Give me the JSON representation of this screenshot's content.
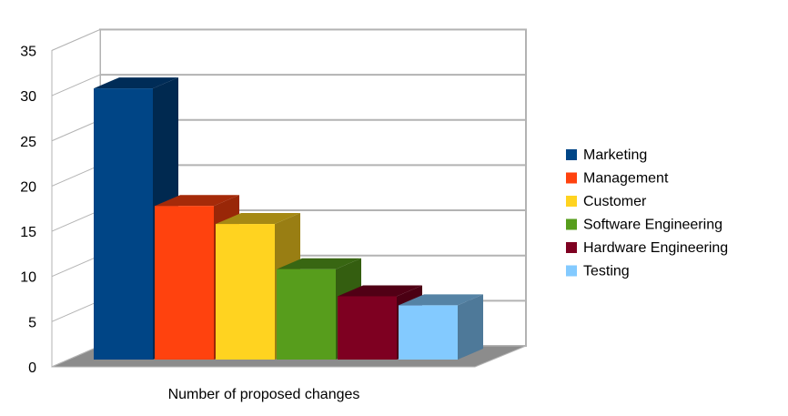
{
  "chart_data": {
    "type": "bar",
    "title": "",
    "xlabel": "Number of proposed changes",
    "ylabel": "",
    "ylim": [
      0,
      35
    ],
    "yticks": [
      0,
      5,
      10,
      15,
      20,
      25,
      30,
      35
    ],
    "grid": true,
    "legend_position": "right",
    "three_d": true,
    "series": [
      {
        "name": "Marketing",
        "value": 30,
        "color": "#004586"
      },
      {
        "name": "Management",
        "value": 17,
        "color": "#ff420e"
      },
      {
        "name": "Customer",
        "value": 15,
        "color": "#ffd320"
      },
      {
        "name": "Software Engineering",
        "value": 10,
        "color": "#579d1c"
      },
      {
        "name": "Hardware Engineering",
        "value": 7,
        "color": "#7e0021"
      },
      {
        "name": "Testing",
        "value": 6,
        "color": "#83caff"
      }
    ]
  }
}
